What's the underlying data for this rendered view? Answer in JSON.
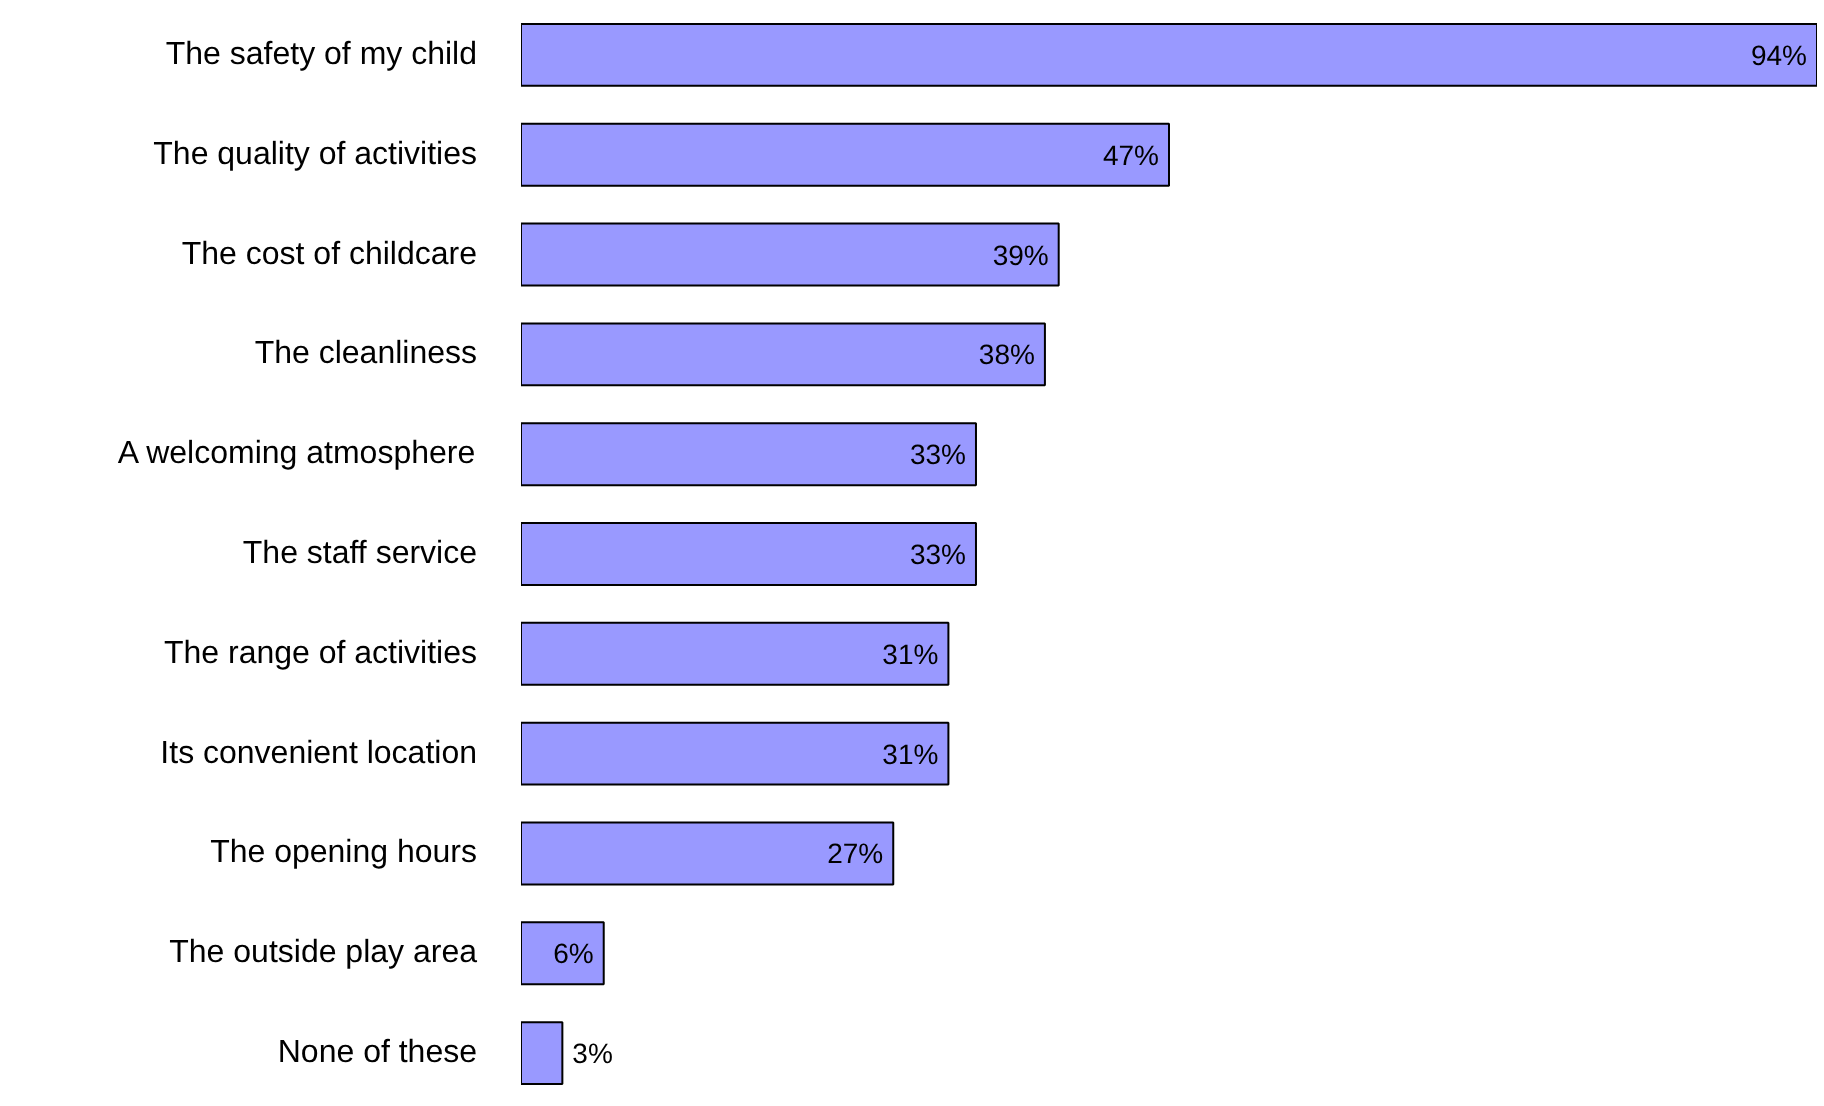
{
  "chart_data": {
    "type": "bar",
    "orientation": "horizontal",
    "categories": [
      "The safety of my child",
      "The quality of activities",
      "The cost of childcare",
      "The cleanliness",
      "A welcoming atmosphere",
      "The staff service",
      "The range of activities",
      "Its convenient location",
      "The opening hours",
      "The outside play area",
      "None of these"
    ],
    "values": [
      94,
      47,
      39,
      38,
      33,
      33,
      31,
      31,
      27,
      6,
      3
    ],
    "value_labels": [
      "94%",
      "47%",
      "39%",
      "38%",
      "33%",
      "33%",
      "31%",
      "31%",
      "27%",
      "6%",
      "3%"
    ],
    "color": "#9999ff"
  }
}
